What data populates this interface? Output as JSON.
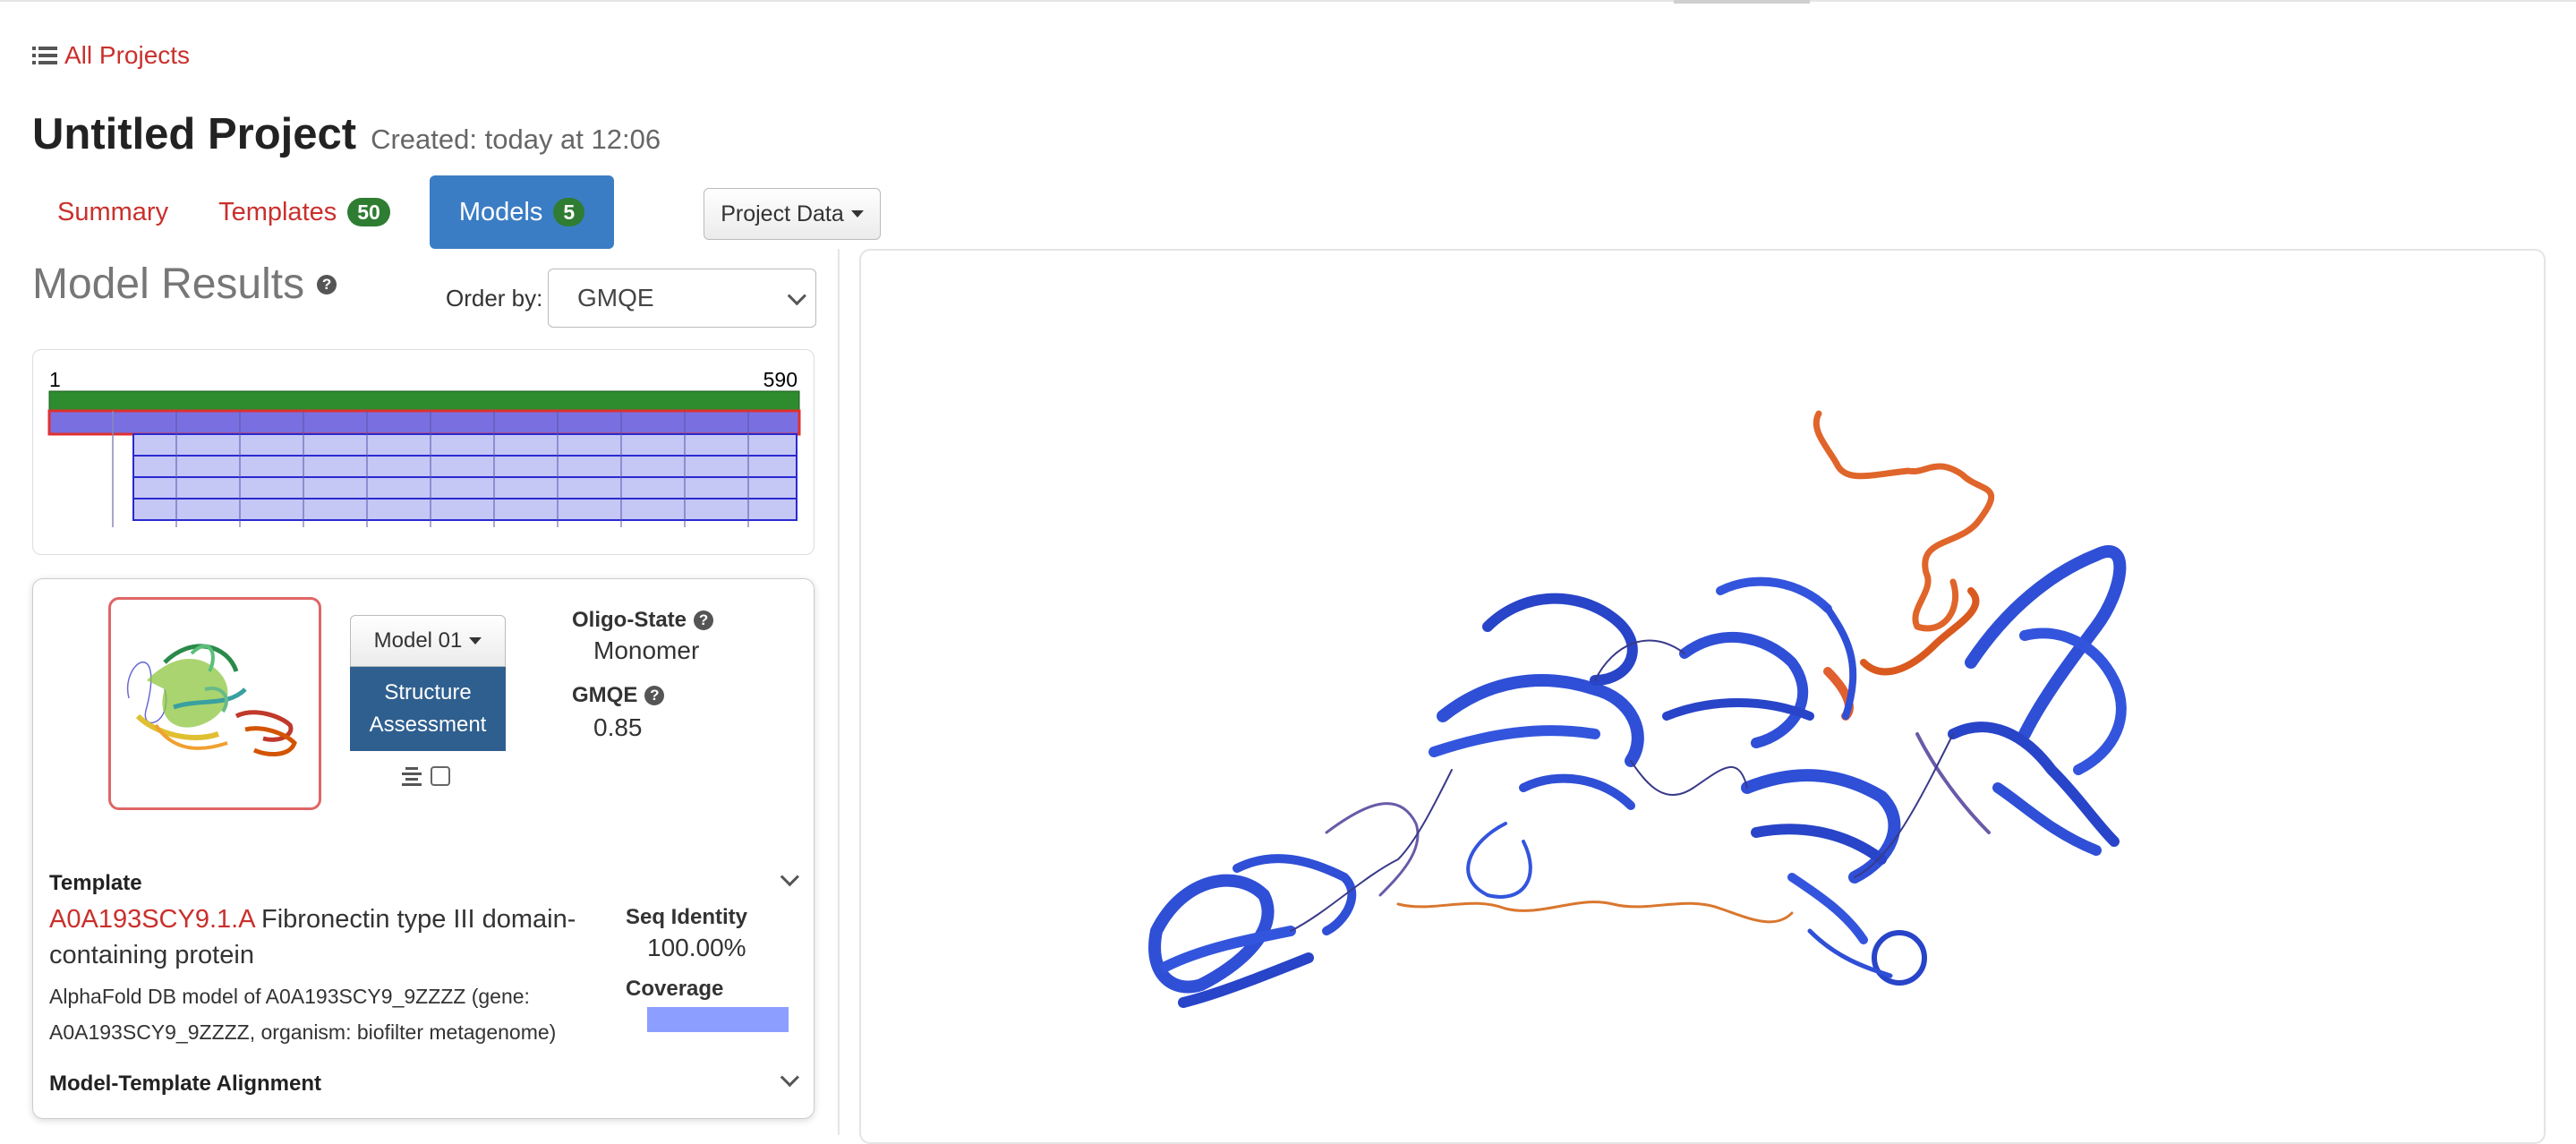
{
  "nav": {
    "all_projects_label": "All Projects",
    "all_projects_icon": "list-icon"
  },
  "project": {
    "title": "Untitled Project",
    "created": "Created: today at 12:06"
  },
  "tabs": [
    {
      "label": "Summary"
    },
    {
      "label": "Templates",
      "count": "50"
    },
    {
      "label": "Models",
      "count": "5",
      "active": true
    }
  ],
  "project_data_button": "Project Data",
  "results": {
    "title": "Model Results",
    "order_by_label": "Order by:",
    "order_by_value": "GMQE"
  },
  "coverage_track": {
    "start": "1",
    "end": "590"
  },
  "model": {
    "selector_label": "Model 01",
    "assessment_label": "Structure Assessment",
    "oligo_label": "Oligo-State",
    "oligo_value": "Monomer",
    "gmqe_label": "GMQE",
    "gmqe_value": "0.85",
    "template_label": "Template",
    "template_id": "A0A193SCY9.1.A",
    "template_name": " Fibronectin type III domain-containing protein",
    "template_desc": "AlphaFold DB model of A0A193SCY9_9ZZZZ (gene: A0A193SCY9_9ZZZZ, organism: biofilter metagenome)",
    "seq_identity_label": "Seq Identity",
    "seq_identity_value": "100.00%",
    "coverage_label": "Coverage",
    "coverage_fraction": 1.0,
    "alignment_label": "Model-Template Alignment"
  },
  "colors": {
    "link_red": "#c9302c",
    "active_tab": "#3b7dc4",
    "badge_green": "#2e7d32",
    "assessment_blue": "#2f5f8f",
    "structure_blue": "#2f4fd6",
    "structure_orange": "#e0652a"
  }
}
